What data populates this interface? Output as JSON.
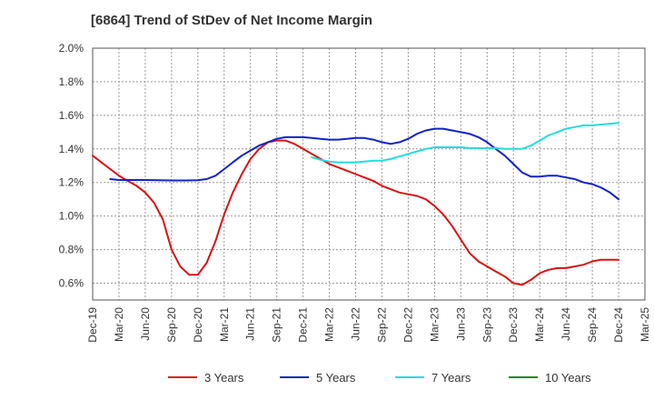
{
  "colors": {
    "3y": "#dd1111",
    "5y": "#1122cc",
    "7y": "#22dddd",
    "10y": "#228822",
    "grid": "#999999",
    "axis": "#555555"
  },
  "chart_data": {
    "type": "line",
    "title": "[6864]  Trend of StDev of Net Income Margin",
    "x_labels": [
      "Dec-19",
      "Mar-20",
      "Jun-20",
      "Sep-20",
      "Dec-20",
      "Mar-21",
      "Jun-21",
      "Sep-21",
      "Dec-21",
      "Mar-22",
      "Jun-22",
      "Sep-22",
      "Dec-22",
      "Mar-23",
      "Jun-23",
      "Sep-23",
      "Dec-23",
      "Mar-24",
      "Jun-24",
      "Sep-24",
      "Dec-24",
      "Mar-25"
    ],
    "y_ticks": [
      "0.6%",
      "0.8%",
      "1.0%",
      "1.2%",
      "1.4%",
      "1.6%",
      "1.8%",
      "2.0%"
    ],
    "ylim": [
      0.5,
      2.0
    ],
    "y_unit": "%",
    "grid": true,
    "legend_position": "bottom",
    "series": [
      {
        "name": "3 Years",
        "color_key": "3y",
        "points": [
          [
            0,
            1.36
          ],
          [
            0.33,
            1.32
          ],
          [
            0.67,
            1.28
          ],
          [
            1,
            1.24
          ],
          [
            1.33,
            1.21
          ],
          [
            1.67,
            1.18
          ],
          [
            2,
            1.14
          ],
          [
            2.33,
            1.08
          ],
          [
            2.67,
            0.98
          ],
          [
            3,
            0.8
          ],
          [
            3.33,
            0.7
          ],
          [
            3.67,
            0.65
          ],
          [
            4,
            0.65
          ],
          [
            4.33,
            0.72
          ],
          [
            4.67,
            0.85
          ],
          [
            5,
            1.01
          ],
          [
            5.33,
            1.14
          ],
          [
            5.67,
            1.25
          ],
          [
            6,
            1.34
          ],
          [
            6.33,
            1.4
          ],
          [
            6.67,
            1.44
          ],
          [
            7,
            1.45
          ],
          [
            7.33,
            1.45
          ],
          [
            7.67,
            1.43
          ],
          [
            8,
            1.4
          ],
          [
            8.33,
            1.37
          ],
          [
            8.67,
            1.34
          ],
          [
            9,
            1.31
          ],
          [
            9.33,
            1.29
          ],
          [
            9.67,
            1.27
          ],
          [
            10,
            1.25
          ],
          [
            10.33,
            1.23
          ],
          [
            10.67,
            1.21
          ],
          [
            11,
            1.18
          ],
          [
            11.33,
            1.16
          ],
          [
            11.67,
            1.14
          ],
          [
            12,
            1.13
          ],
          [
            12.33,
            1.12
          ],
          [
            12.67,
            1.1
          ],
          [
            13,
            1.06
          ],
          [
            13.33,
            1.01
          ],
          [
            13.67,
            0.94
          ],
          [
            14,
            0.86
          ],
          [
            14.33,
            0.78
          ],
          [
            14.67,
            0.73
          ],
          [
            15,
            0.7
          ],
          [
            15.33,
            0.67
          ],
          [
            15.67,
            0.64
          ],
          [
            16,
            0.6
          ],
          [
            16.33,
            0.59
          ],
          [
            16.67,
            0.62
          ],
          [
            17,
            0.66
          ],
          [
            17.33,
            0.68
          ],
          [
            17.67,
            0.69
          ],
          [
            18,
            0.69
          ],
          [
            18.33,
            0.7
          ],
          [
            18.67,
            0.71
          ],
          [
            19,
            0.73
          ],
          [
            19.33,
            0.74
          ],
          [
            19.67,
            0.74
          ],
          [
            20,
            0.74
          ]
        ]
      },
      {
        "name": "5 Years",
        "color_key": "5y",
        "points": [
          [
            0.67,
            1.22
          ],
          [
            1,
            1.215
          ],
          [
            1.5,
            1.215
          ],
          [
            2,
            1.215
          ],
          [
            2.5,
            1.213
          ],
          [
            3,
            1.212
          ],
          [
            3.5,
            1.212
          ],
          [
            4,
            1.213
          ],
          [
            4.33,
            1.22
          ],
          [
            4.67,
            1.24
          ],
          [
            5,
            1.28
          ],
          [
            5.33,
            1.32
          ],
          [
            5.67,
            1.36
          ],
          [
            6,
            1.39
          ],
          [
            6.33,
            1.42
          ],
          [
            6.67,
            1.44
          ],
          [
            7,
            1.46
          ],
          [
            7.33,
            1.47
          ],
          [
            7.67,
            1.47
          ],
          [
            8,
            1.47
          ],
          [
            8.33,
            1.465
          ],
          [
            8.67,
            1.46
          ],
          [
            9,
            1.455
          ],
          [
            9.33,
            1.455
          ],
          [
            9.67,
            1.46
          ],
          [
            10,
            1.465
          ],
          [
            10.33,
            1.465
          ],
          [
            10.67,
            1.455
          ],
          [
            11,
            1.44
          ],
          [
            11.33,
            1.43
          ],
          [
            11.67,
            1.44
          ],
          [
            12,
            1.46
          ],
          [
            12.33,
            1.49
          ],
          [
            12.67,
            1.51
          ],
          [
            13,
            1.52
          ],
          [
            13.33,
            1.52
          ],
          [
            13.67,
            1.51
          ],
          [
            14,
            1.5
          ],
          [
            14.33,
            1.49
          ],
          [
            14.67,
            1.47
          ],
          [
            15,
            1.44
          ],
          [
            15.33,
            1.4
          ],
          [
            15.67,
            1.36
          ],
          [
            16,
            1.31
          ],
          [
            16.33,
            1.26
          ],
          [
            16.67,
            1.235
          ],
          [
            17,
            1.235
          ],
          [
            17.33,
            1.24
          ],
          [
            17.67,
            1.24
          ],
          [
            18,
            1.23
          ],
          [
            18.33,
            1.22
          ],
          [
            18.67,
            1.2
          ],
          [
            19,
            1.19
          ],
          [
            19.33,
            1.17
          ],
          [
            19.67,
            1.14
          ],
          [
            20,
            1.1
          ]
        ]
      },
      {
        "name": "7 Years",
        "color_key": "7y",
        "points": [
          [
            8.33,
            1.35
          ],
          [
            8.67,
            1.335
          ],
          [
            9,
            1.325
          ],
          [
            9.33,
            1.32
          ],
          [
            9.67,
            1.32
          ],
          [
            10,
            1.32
          ],
          [
            10.33,
            1.325
          ],
          [
            10.67,
            1.33
          ],
          [
            11,
            1.33
          ],
          [
            11.33,
            1.34
          ],
          [
            11.67,
            1.355
          ],
          [
            12,
            1.37
          ],
          [
            12.33,
            1.385
          ],
          [
            12.67,
            1.4
          ],
          [
            13,
            1.41
          ],
          [
            13.33,
            1.41
          ],
          [
            13.67,
            1.41
          ],
          [
            14,
            1.41
          ],
          [
            14.33,
            1.405
          ],
          [
            14.67,
            1.405
          ],
          [
            15,
            1.405
          ],
          [
            15.33,
            1.405
          ],
          [
            15.67,
            1.4
          ],
          [
            16,
            1.4
          ],
          [
            16.33,
            1.4
          ],
          [
            16.67,
            1.42
          ],
          [
            17,
            1.45
          ],
          [
            17.33,
            1.48
          ],
          [
            17.67,
            1.5
          ],
          [
            18,
            1.52
          ],
          [
            18.33,
            1.53
          ],
          [
            18.67,
            1.54
          ],
          [
            19,
            1.54
          ],
          [
            19.33,
            1.545
          ],
          [
            19.67,
            1.55
          ],
          [
            20,
            1.555
          ]
        ]
      },
      {
        "name": "10 Years",
        "color_key": "10y",
        "points": []
      }
    ]
  }
}
